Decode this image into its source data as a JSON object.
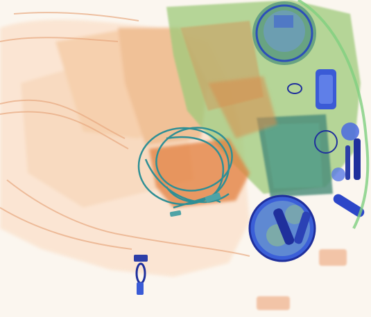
{
  "image": {
    "kind": "xray-baggage-scan",
    "background": "#fbf6ef",
    "palette": {
      "organic_light": "#f6c9a4",
      "organic": "#e79a5f",
      "organic_dark": "#d87a3a",
      "mixed_green": "#8fbf6b",
      "mixed_dark": "#5b9f7c",
      "metal_blue": "#3a5bd6",
      "metal_dark": "#1f2f9c",
      "cable_teal": "#2f8f95"
    }
  }
}
